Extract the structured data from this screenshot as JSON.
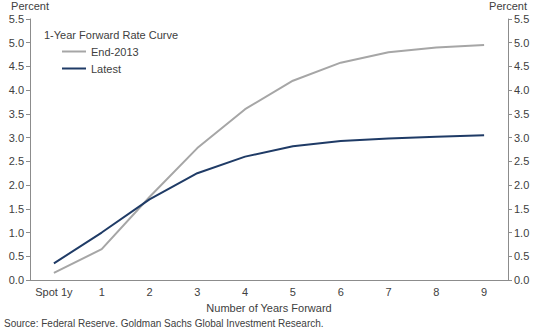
{
  "chart_data": {
    "type": "line",
    "title": "1-Year Forward Rate Curve",
    "xlabel": "Number of Years Forward",
    "ylabel": "Percent",
    "y2label": "Percent",
    "source": "Source: Federal Reserve. Goldman Sachs Global Investment Research.",
    "categories": [
      "Spot 1y",
      "1",
      "2",
      "3",
      "4",
      "5",
      "6",
      "7",
      "8",
      "9"
    ],
    "series": [
      {
        "name": "End-2013",
        "color": "#a6a6a6",
        "values": [
          0.15,
          0.65,
          1.75,
          2.78,
          3.6,
          4.2,
          4.58,
          4.8,
          4.9,
          4.95
        ]
      },
      {
        "name": "Latest",
        "color": "#1f3b66",
        "values": [
          0.35,
          1.0,
          1.7,
          2.25,
          2.6,
          2.82,
          2.93,
          2.98,
          3.02,
          3.05
        ]
      }
    ],
    "ylim": [
      0,
      5.5
    ],
    "yticks": [
      {
        "value": 0,
        "label": "0.0"
      },
      0.5,
      {
        "value": 1,
        "label": "1.0"
      },
      1.5,
      {
        "value": 2,
        "label": "2.0"
      },
      2.5,
      {
        "value": 3,
        "label": "3.0"
      },
      3.5,
      {
        "value": 4,
        "label": "4.0"
      },
      4.5,
      {
        "value": 5,
        "label": "5.0"
      },
      5.5
    ],
    "y2lim": [
      0,
      5.5
    ],
    "y2ticks": [
      {
        "value": 0,
        "label": "0.0"
      },
      0.5,
      {
        "value": 1,
        "label": "1.0"
      },
      1.5,
      {
        "value": 2,
        "label": "2.0"
      },
      2.5,
      {
        "value": 3,
        "label": "3.0"
      },
      3.5,
      {
        "value": 4,
        "label": "4.0"
      },
      4.5,
      {
        "value": 5,
        "label": "5.0"
      },
      5.5
    ],
    "grid": false,
    "legend": "upper left"
  }
}
